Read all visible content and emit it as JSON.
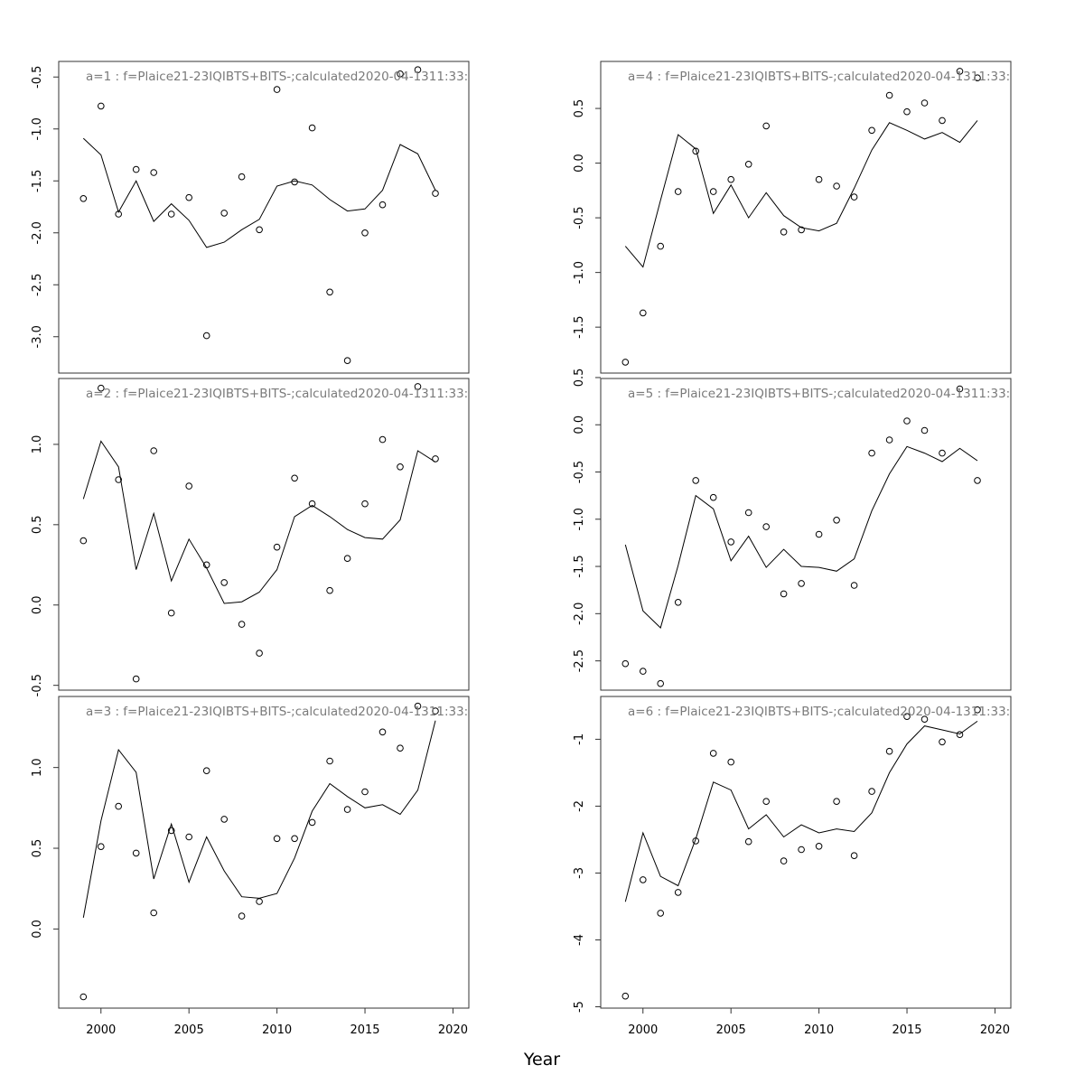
{
  "figure": {
    "xlabel": "Year"
  },
  "chart_data": [
    {
      "type": "line",
      "title": "a=1  :  f=Plaice21-23IQIBTS+BITS-;calculated2020-04-1311:33:",
      "xlim": [
        1997.6,
        2020.9
      ],
      "ylim": [
        -3.35,
        -0.35
      ],
      "xticks": [],
      "yticks": [
        "-0.5",
        "-1.0",
        "-1.5",
        "-2.0",
        "-2.5",
        "-3.0"
      ],
      "ytick_values": [
        -0.5,
        -1.0,
        -1.5,
        -2.0,
        -2.5,
        -3.0
      ],
      "series": [
        {
          "x": [
            1999,
            2000,
            2001,
            2002,
            2003,
            2004,
            2005,
            2006,
            2007,
            2008,
            2009,
            2010,
            2011,
            2012,
            2013,
            2014,
            2015,
            2016,
            2017,
            2018,
            2019
          ],
          "values": [
            -1.09,
            -1.25,
            -1.8,
            -1.5,
            -1.89,
            -1.72,
            -1.88,
            -2.14,
            -2.09,
            -1.97,
            -1.87,
            -1.55,
            -1.5,
            -1.54,
            -1.68,
            -1.79,
            -1.77,
            -1.59,
            -1.15,
            -1.24,
            -1.59
          ],
          "mode": "line"
        },
        {
          "x": [
            1999,
            2000,
            2001,
            2002,
            2003,
            2004,
            2005,
            2006,
            2007,
            2008,
            2009,
            2010,
            2011,
            2012,
            2013,
            2014,
            2015,
            2016,
            2017,
            2018,
            2019
          ],
          "values": [
            -1.67,
            -0.78,
            -1.82,
            -1.39,
            -1.42,
            -1.82,
            -1.66,
            -2.99,
            -1.81,
            -1.46,
            -1.97,
            -0.62,
            -1.51,
            -0.99,
            -2.57,
            -3.23,
            -2.0,
            -1.73,
            -0.47,
            -0.43,
            -1.62
          ],
          "mode": "points"
        }
      ]
    },
    {
      "type": "line",
      "title": "a=2  :  f=Plaice21-23IQIBTS+BITS-;calculated2020-04-1311:33:",
      "xlim": [
        1997.6,
        2020.9
      ],
      "ylim": [
        -0.53,
        1.41
      ],
      "xticks": [],
      "yticks": [
        "1.0",
        "0.5",
        "0.0",
        "-0.5"
      ],
      "ytick_values": [
        1.0,
        0.5,
        0.0,
        -0.5
      ],
      "series": [
        {
          "x": [
            1999,
            2000,
            2001,
            2002,
            2003,
            2004,
            2005,
            2006,
            2007,
            2008,
            2009,
            2010,
            2011,
            2012,
            2013,
            2014,
            2015,
            2016,
            2017,
            2018,
            2019
          ],
          "values": [
            0.66,
            1.02,
            0.86,
            0.22,
            0.57,
            0.15,
            0.41,
            0.23,
            0.01,
            0.02,
            0.08,
            0.22,
            0.55,
            0.62,
            0.55,
            0.47,
            0.42,
            0.41,
            0.53,
            0.96,
            0.89
          ],
          "mode": "line"
        },
        {
          "x": [
            1999,
            2000,
            2001,
            2002,
            2003,
            2004,
            2005,
            2006,
            2007,
            2008,
            2009,
            2010,
            2011,
            2012,
            2013,
            2014,
            2015,
            2016,
            2017,
            2018,
            2019
          ],
          "values": [
            0.4,
            1.35,
            0.78,
            -0.46,
            0.96,
            -0.05,
            0.74,
            0.25,
            0.14,
            -0.12,
            -0.3,
            0.36,
            0.79,
            0.63,
            0.09,
            0.29,
            0.63,
            1.03,
            0.86,
            1.36,
            0.91
          ],
          "mode": "points"
        }
      ]
    },
    {
      "type": "line",
      "title": "a=3  :  f=Plaice21-23IQIBTS+BITS-;calculated2020-04-1311:33:",
      "xlim": [
        1997.6,
        2020.9
      ],
      "ylim": [
        -0.49,
        1.44
      ],
      "xticks": [
        "2000",
        "2005",
        "2010",
        "2015",
        "2020"
      ],
      "xtick_values": [
        2000,
        2005,
        2010,
        2015,
        2020
      ],
      "yticks": [
        "1.0",
        "0.5",
        "0.0"
      ],
      "ytick_values": [
        1.0,
        0.5,
        0.0
      ],
      "series": [
        {
          "x": [
            1999,
            2000,
            2001,
            2002,
            2003,
            2004,
            2005,
            2006,
            2007,
            2008,
            2009,
            2010,
            2011,
            2012,
            2013,
            2014,
            2015,
            2016,
            2017,
            2018,
            2019
          ],
          "values": [
            0.07,
            0.67,
            1.11,
            0.97,
            0.31,
            0.65,
            0.29,
            0.57,
            0.36,
            0.2,
            0.19,
            0.22,
            0.44,
            0.73,
            0.9,
            0.82,
            0.75,
            0.77,
            0.71,
            0.86,
            1.29
          ],
          "mode": "line"
        },
        {
          "x": [
            1999,
            2000,
            2001,
            2002,
            2003,
            2004,
            2005,
            2006,
            2007,
            2008,
            2009,
            2010,
            2011,
            2012,
            2013,
            2014,
            2015,
            2016,
            2017,
            2018,
            2019
          ],
          "values": [
            -0.42,
            0.51,
            0.76,
            0.47,
            0.1,
            0.61,
            0.57,
            0.98,
            0.68,
            0.08,
            0.17,
            0.56,
            0.56,
            0.66,
            1.04,
            0.74,
            0.85,
            1.22,
            1.12,
            1.38,
            1.35
          ],
          "mode": "points"
        }
      ]
    },
    {
      "type": "line",
      "title": "a=4  :  f=Plaice21-23IQIBTS+BITS-;calculated2020-04-1311:33:",
      "xlim": [
        1997.6,
        2020.9
      ],
      "ylim": [
        -1.92,
        0.93
      ],
      "xticks": [],
      "yticks": [
        "0.5",
        "0.0",
        "-0.5",
        "-1.0",
        "-1.5"
      ],
      "ytick_values": [
        0.5,
        0.0,
        -0.5,
        -1.0,
        -1.5
      ],
      "series": [
        {
          "x": [
            1999,
            2000,
            2001,
            2002,
            2003,
            2004,
            2005,
            2006,
            2007,
            2008,
            2009,
            2010,
            2011,
            2012,
            2013,
            2014,
            2015,
            2016,
            2017,
            2018,
            2019
          ],
          "values": [
            -0.76,
            -0.95,
            -0.34,
            0.26,
            0.13,
            -0.46,
            -0.2,
            -0.5,
            -0.27,
            -0.48,
            -0.59,
            -0.62,
            -0.55,
            -0.23,
            0.12,
            0.37,
            0.3,
            0.22,
            0.28,
            0.19,
            0.39
          ],
          "mode": "line"
        },
        {
          "x": [
            1999,
            2000,
            2001,
            2002,
            2003,
            2004,
            2005,
            2006,
            2007,
            2008,
            2009,
            2010,
            2011,
            2012,
            2013,
            2014,
            2015,
            2016,
            2017,
            2018,
            2019
          ],
          "values": [
            -1.82,
            -1.37,
            -0.76,
            -0.26,
            0.11,
            -0.26,
            -0.15,
            -0.01,
            0.34,
            -0.63,
            -0.61,
            -0.15,
            -0.21,
            -0.31,
            0.3,
            0.62,
            0.47,
            0.55,
            0.39,
            0.84,
            0.78
          ],
          "mode": "points"
        }
      ]
    },
    {
      "type": "line",
      "title": "a=5  :  f=Plaice21-23IQIBTS+BITS-;calculated2020-04-1311:33:",
      "xlim": [
        1997.6,
        2020.9
      ],
      "ylim": [
        -2.81,
        0.49
      ],
      "xticks": [],
      "yticks": [
        "0.5",
        "0.0",
        "-0.5",
        "-1.0",
        "-1.5",
        "-2.0",
        "-2.5"
      ],
      "ytick_values": [
        0.5,
        0.0,
        -0.5,
        -1.0,
        -1.5,
        -2.0,
        -2.5
      ],
      "series": [
        {
          "x": [
            1999,
            2000,
            2001,
            2002,
            2003,
            2004,
            2005,
            2006,
            2007,
            2008,
            2009,
            2010,
            2011,
            2012,
            2013,
            2014,
            2015,
            2016,
            2017,
            2018,
            2019
          ],
          "values": [
            -1.27,
            -1.97,
            -2.15,
            -1.49,
            -0.75,
            -0.89,
            -1.44,
            -1.18,
            -1.51,
            -1.32,
            -1.5,
            -1.51,
            -1.55,
            -1.42,
            -0.91,
            -0.52,
            -0.23,
            -0.3,
            -0.39,
            -0.25,
            -0.38
          ],
          "mode": "line"
        },
        {
          "x": [
            1999,
            2000,
            2001,
            2002,
            2003,
            2004,
            2005,
            2006,
            2007,
            2008,
            2009,
            2010,
            2011,
            2012,
            2013,
            2014,
            2015,
            2016,
            2017,
            2018,
            2019
          ],
          "values": [
            -2.53,
            -2.61,
            -2.74,
            -1.88,
            -0.59,
            -0.77,
            -1.24,
            -0.93,
            -1.08,
            -1.79,
            -1.68,
            -1.16,
            -1.01,
            -1.7,
            -0.3,
            -0.16,
            0.04,
            -0.06,
            -0.3,
            0.38,
            -0.59
          ],
          "mode": "points"
        }
      ]
    },
    {
      "type": "line",
      "title": "a=6  :  f=Plaice21-23IQIBTS+BITS-;calculated2020-04-1311:33:",
      "xlim": [
        1997.6,
        2020.9
      ],
      "ylim": [
        -5.02,
        -0.36
      ],
      "xticks": [
        "2000",
        "2005",
        "2010",
        "2015",
        "2020"
      ],
      "xtick_values": [
        2000,
        2005,
        2010,
        2015,
        2020
      ],
      "yticks": [
        "-1",
        "-2",
        "-3",
        "-4",
        "-5"
      ],
      "ytick_values": [
        -1,
        -2,
        -3,
        -4,
        -5
      ],
      "series": [
        {
          "x": [
            1999,
            2000,
            2001,
            2002,
            2003,
            2004,
            2005,
            2006,
            2007,
            2008,
            2009,
            2010,
            2011,
            2012,
            2013,
            2014,
            2015,
            2016,
            2017,
            2018,
            2019
          ],
          "values": [
            -3.43,
            -2.4,
            -3.05,
            -3.19,
            -2.49,
            -1.64,
            -1.76,
            -2.34,
            -2.13,
            -2.46,
            -2.28,
            -2.4,
            -2.34,
            -2.38,
            -2.1,
            -1.5,
            -1.07,
            -0.8,
            -0.86,
            -0.92,
            -0.73
          ],
          "mode": "line"
        },
        {
          "x": [
            1999,
            2000,
            2001,
            2002,
            2003,
            2004,
            2005,
            2006,
            2007,
            2008,
            2009,
            2010,
            2011,
            2012,
            2013,
            2014,
            2015,
            2016,
            2017,
            2018,
            2019
          ],
          "values": [
            -4.84,
            -3.1,
            -3.6,
            -3.29,
            -2.52,
            -1.21,
            -1.34,
            -2.53,
            -1.93,
            -2.82,
            -2.65,
            -2.6,
            -1.93,
            -2.74,
            -1.78,
            -1.18,
            -0.66,
            -0.7,
            -1.04,
            -0.93,
            -0.56
          ],
          "mode": "points"
        }
      ]
    }
  ]
}
